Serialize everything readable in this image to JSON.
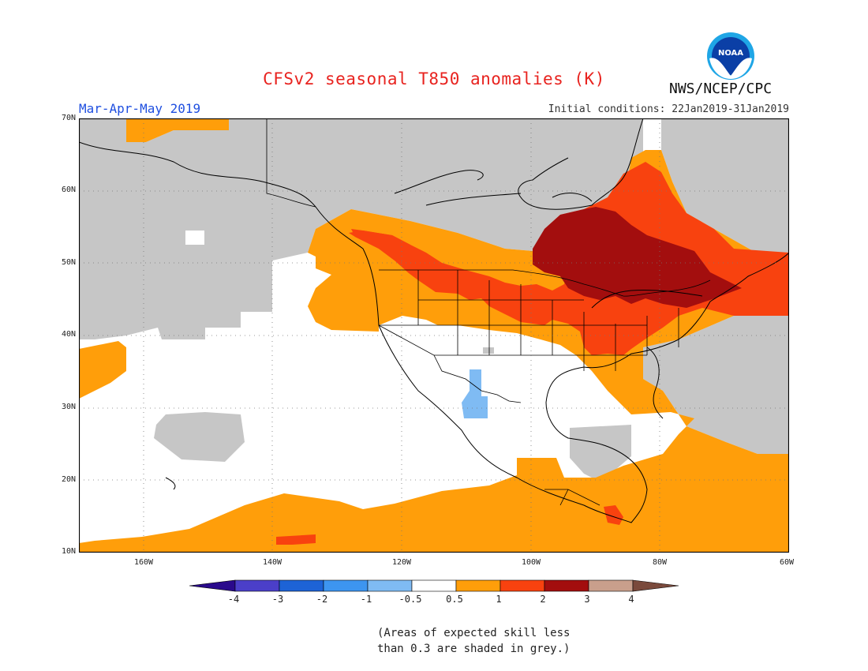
{
  "header": {
    "title": "CFSv2 seasonal T850 anomalies (K)",
    "season": "Mar-Apr-May 2019",
    "initial_conditions": "Initial conditions: 22Jan2019-31Jan2019",
    "agency": "NWS/NCEP/CPC",
    "logo_text": "NOAA"
  },
  "axes": {
    "lat_labels": [
      "70N",
      "60N",
      "50N",
      "40N",
      "30N",
      "20N",
      "10N"
    ],
    "lon_labels": [
      "160W",
      "140W",
      "120W",
      "100W",
      "80W",
      "60W"
    ]
  },
  "colorbar": {
    "tick_labels": [
      "-4",
      "-3",
      "-2",
      "-1",
      "-0.5",
      "0.5",
      "1",
      "2",
      "3",
      "4"
    ],
    "colors": {
      "below_-4": "#2a0a8c",
      "-4_-3": "#4b3fc9",
      "-3_-2": "#1d63d6",
      "-2_-1": "#3d95f0",
      "-1_-0.5": "#7fbbf3",
      "-0.5_0.5": "#ffffff",
      "0.5_1": "#ff9e0a",
      "1_2": "#f8420f",
      "2_3": "#a30e0e",
      "3_4": "#c99f8c",
      "above_4": "#7a4a3c"
    },
    "no_skill_color": "#c6c6c6"
  },
  "footnote": {
    "line1": "(Areas of expected skill less",
    "line2": "than 0.3 are shaded in grey.)"
  }
}
